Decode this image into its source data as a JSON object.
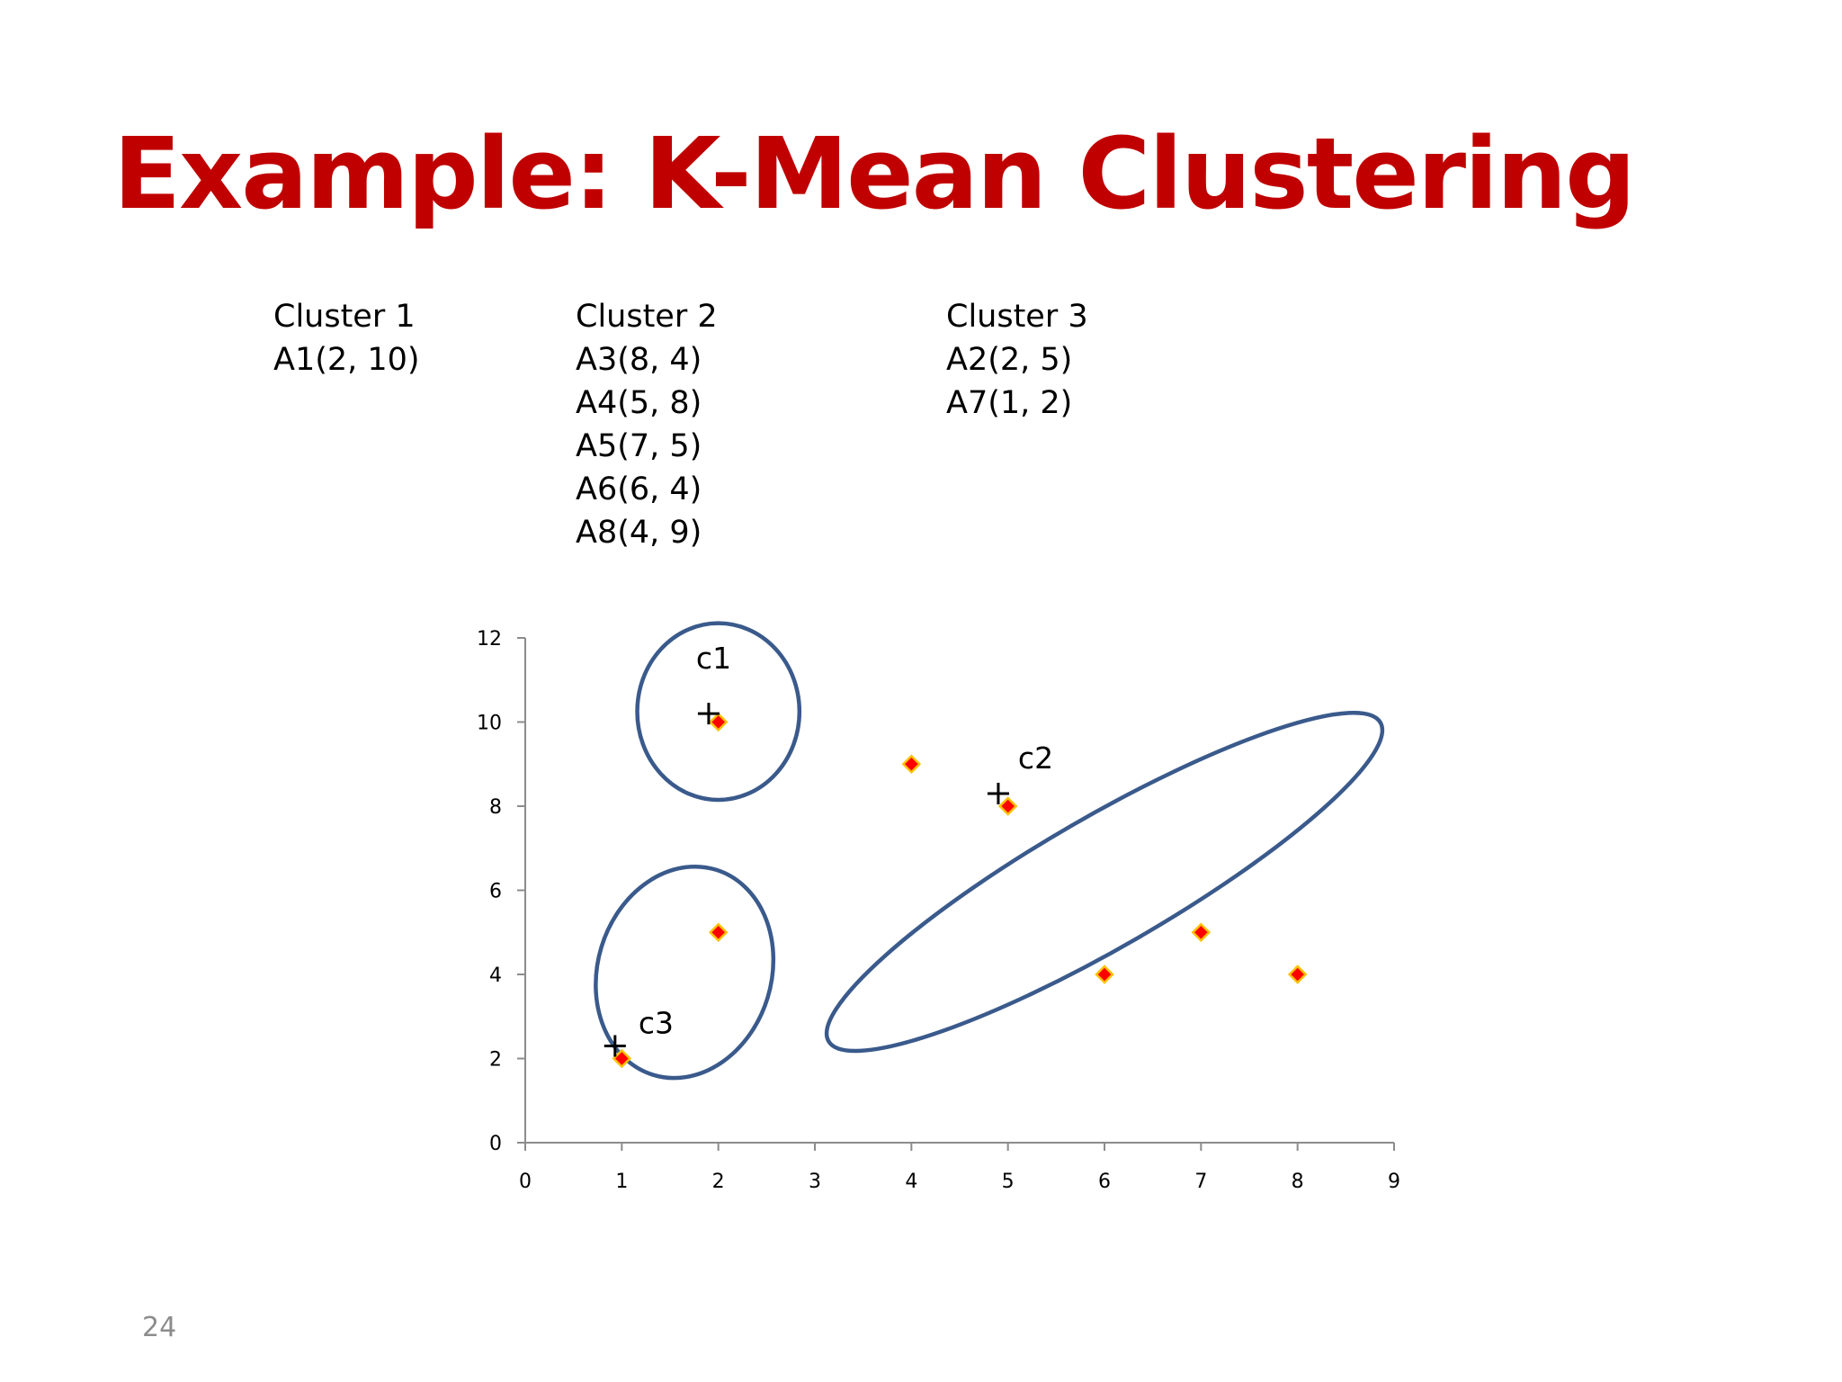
{
  "slide": {
    "title": "Example: K-Mean Clustering",
    "page_number": "24"
  },
  "clusters": [
    {
      "name": "Cluster 1",
      "points": [
        "A1(2, 10)"
      ]
    },
    {
      "name": "Cluster 2",
      "points": [
        "A3(8, 4)",
        "A4(5, 8)",
        "A5(7, 5)",
        "A6(6, 4)",
        "A8(4, 9)"
      ]
    },
    {
      "name": "Cluster 3",
      "points": [
        "A2(2, 5)",
        "A7(1, 2)"
      ]
    }
  ],
  "chart_data": {
    "type": "scatter",
    "title": "",
    "xlabel": "",
    "ylabel": "",
    "xlim": [
      0,
      9
    ],
    "ylim": [
      0,
      12
    ],
    "xticks": [
      0,
      1,
      2,
      3,
      4,
      5,
      6,
      7,
      8,
      9
    ],
    "yticks": [
      0,
      2,
      4,
      6,
      8,
      10,
      12
    ],
    "grid": false,
    "legend": "none",
    "marker": "diamond",
    "marker_color": "#ff0000",
    "marker_edge_color": "#ffc000",
    "points": [
      {
        "x": 2,
        "y": 10
      },
      {
        "x": 2,
        "y": 5
      },
      {
        "x": 8,
        "y": 4
      },
      {
        "x": 5,
        "y": 8
      },
      {
        "x": 7,
        "y": 5
      },
      {
        "x": 6,
        "y": 4
      },
      {
        "x": 1,
        "y": 2
      },
      {
        "x": 4,
        "y": 9
      }
    ],
    "centroids": [
      {
        "label": "c1",
        "x": 1.9,
        "y": 10.2
      },
      {
        "label": "c2",
        "x": 4.9,
        "y": 8.3
      },
      {
        "label": "c3",
        "x": 0.93,
        "y": 2.3
      }
    ],
    "ellipse_color": "#3a5a8c",
    "ellipses": [
      {
        "cx": 2.0,
        "cy": 10.25,
        "rx": 0.84,
        "ry": 2.1,
        "rotation": 0
      },
      {
        "cx": 6.0,
        "cy": 6.2,
        "rx": 3.3,
        "ry": 1.55,
        "rotation": -30
      },
      {
        "cx": 1.65,
        "cy": 4.05,
        "rx": 0.9,
        "ry": 2.55,
        "rotation": 17
      }
    ]
  }
}
